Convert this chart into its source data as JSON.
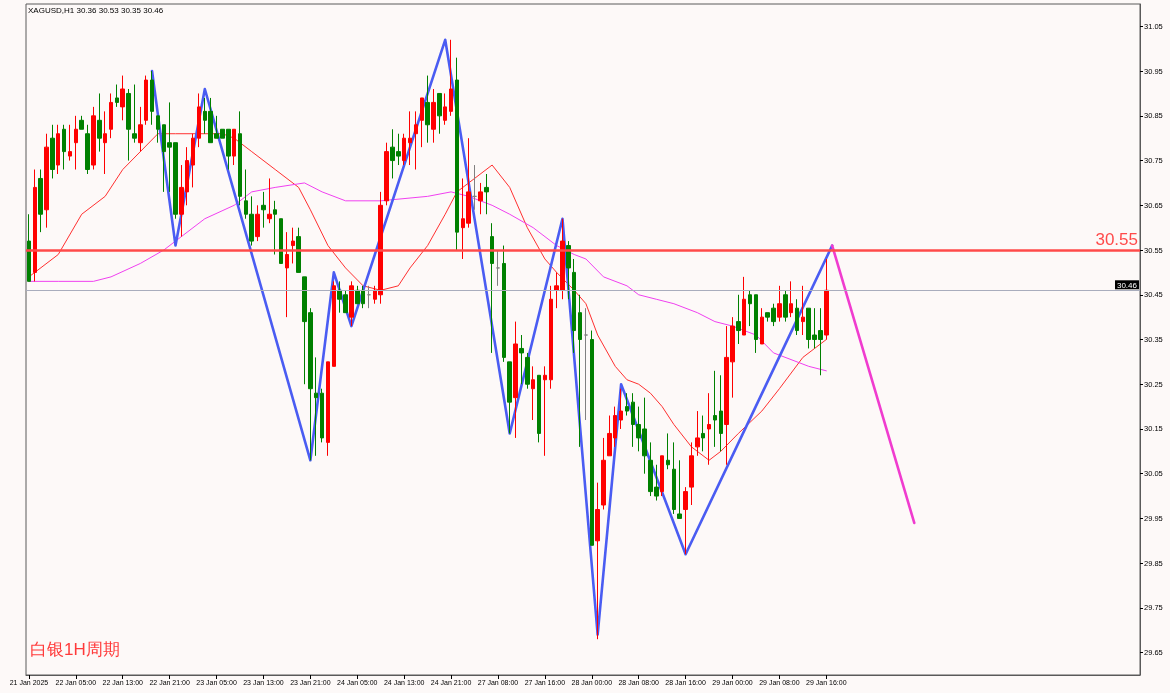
{
  "chart_data": {
    "type": "candlestick",
    "title": "XAGUSD,H1 30.36 30.53 30.35 30.46",
    "categories": [
      "21 Jan 2025",
      null,
      null,
      null,
      null,
      null,
      null,
      null,
      "22 Jan 05:00",
      null,
      null,
      null,
      null,
      null,
      null,
      null,
      "22 Jan 13:00",
      null,
      null,
      null,
      null,
      null,
      null,
      null,
      "22 Jan 21:00",
      null,
      null,
      null,
      null,
      null,
      null,
      null,
      "23 Jan 05:00",
      null,
      null,
      null,
      null,
      null,
      null,
      null,
      "23 Jan 13:00",
      null,
      null,
      null,
      null,
      null,
      null,
      null,
      "23 Jan 21:00",
      null,
      null,
      null,
      null,
      null,
      null,
      null,
      "24 Jan 05:00",
      null,
      null,
      null,
      null,
      null,
      null,
      null,
      "24 Jan 13:00",
      null,
      null,
      null,
      null,
      null,
      null,
      null,
      "24 Jan 21:00",
      null,
      null,
      null,
      null,
      null,
      null,
      null,
      "27 Jan 08:00",
      null,
      null,
      null,
      null,
      null,
      null,
      null,
      "27 Jan 16:00",
      null,
      null,
      null,
      null,
      null,
      null,
      null,
      "28 Jan 00:00",
      null,
      null,
      null,
      null,
      null,
      null,
      null,
      "28 Jan 08:00",
      null,
      null,
      null,
      null,
      null,
      null,
      null,
      "28 Jan 16:00",
      null,
      null,
      null,
      null,
      null,
      null,
      null,
      "29 Jan 00:00",
      null,
      null,
      null,
      null,
      null,
      null,
      null,
      "29 Jan 08:00",
      null,
      null,
      null,
      null,
      null,
      null,
      null,
      "29 Jan 16:00",
      null,
      null,
      null,
      null,
      null,
      null,
      null,
      null,
      null,
      null,
      null,
      null,
      null,
      null,
      null,
      null,
      null,
      null,
      null,
      null,
      null,
      null,
      null,
      null,
      null,
      null,
      null,
      null,
      null,
      null,
      null,
      null,
      null,
      null,
      null,
      null,
      null,
      null,
      null,
      null,
      null,
      null,
      null,
      null,
      null,
      null,
      null,
      null,
      null,
      null,
      null,
      null,
      null
    ],
    "ohlc": [
      [
        30.57,
        30.63,
        30.48,
        30.48
      ],
      [
        30.5,
        30.73,
        30.48,
        30.69
      ],
      [
        30.71,
        30.73,
        30.59,
        30.63
      ],
      [
        30.64,
        30.81,
        30.6,
        30.78
      ],
      [
        30.8,
        30.83,
        30.71,
        30.73
      ],
      [
        30.74,
        30.83,
        30.72,
        30.81
      ],
      [
        30.82,
        30.83,
        30.73,
        30.77
      ],
      [
        30.76,
        30.83,
        30.75,
        30.77
      ],
      [
        30.79,
        30.85,
        30.73,
        30.82
      ],
      [
        30.84,
        30.85,
        30.82,
        30.82
      ],
      [
        30.81,
        30.83,
        30.72,
        30.73
      ],
      [
        30.74,
        30.87,
        30.73,
        30.85
      ],
      [
        30.84,
        30.9,
        30.77,
        30.8
      ],
      [
        30.79,
        30.86,
        30.72,
        30.81
      ],
      [
        30.82,
        30.9,
        30.8,
        30.88
      ],
      [
        30.89,
        30.92,
        30.87,
        30.88
      ],
      [
        30.87,
        30.94,
        30.84,
        30.91
      ],
      [
        30.9,
        30.91,
        30.75,
        30.82
      ],
      [
        30.81,
        30.92,
        30.79,
        30.8
      ],
      [
        30.79,
        30.87,
        30.77,
        30.83
      ],
      [
        30.84,
        30.94,
        30.83,
        30.93
      ],
      [
        30.93,
        30.95,
        30.83,
        30.86
      ],
      [
        30.85,
        30.85,
        30.79,
        30.82
      ],
      [
        30.83,
        30.83,
        30.68,
        30.77
      ],
      [
        30.79,
        30.88,
        30.68,
        30.78
      ],
      [
        30.79,
        30.79,
        30.62,
        30.63
      ],
      [
        30.63,
        30.74,
        30.58,
        30.69
      ],
      [
        30.68,
        30.78,
        30.65,
        30.75
      ],
      [
        30.74,
        30.81,
        30.69,
        30.8
      ],
      [
        30.8,
        30.9,
        30.78,
        30.87
      ],
      [
        30.86,
        30.89,
        30.81,
        30.84
      ],
      [
        30.86,
        30.89,
        30.79,
        30.79
      ],
      [
        30.81,
        30.85,
        30.8,
        30.8
      ],
      [
        30.82,
        30.82,
        30.8,
        30.8
      ],
      [
        30.82,
        30.82,
        30.73,
        30.76
      ],
      [
        30.76,
        30.82,
        30.74,
        30.82
      ],
      [
        30.81,
        30.86,
        30.65,
        30.67
      ],
      [
        30.66,
        30.73,
        30.62,
        30.63
      ],
      [
        30.63,
        30.67,
        30.56,
        30.57
      ],
      [
        30.58,
        30.65,
        30.57,
        30.63
      ],
      [
        30.65,
        30.68,
        30.6,
        30.64
      ],
      [
        30.62,
        30.71,
        30.61,
        30.63
      ],
      [
        30.64,
        30.66,
        30.54,
        30.63
      ],
      [
        30.62,
        30.62,
        30.52,
        30.52
      ],
      [
        30.51,
        30.59,
        30.4,
        30.54
      ],
      [
        30.56,
        30.6,
        30.52,
        30.57
      ],
      [
        30.58,
        30.6,
        30.5,
        30.5
      ],
      [
        30.49,
        30.49,
        30.25,
        30.39
      ],
      [
        30.41,
        30.42,
        30.08,
        30.24
      ],
      [
        30.23,
        30.31,
        30.09,
        30.22
      ],
      [
        30.23,
        30.24,
        30.12,
        30.13
      ],
      [
        30.12,
        30.3,
        30.09,
        30.3
      ],
      [
        30.29,
        30.48,
        30.29,
        30.47
      ],
      [
        30.46,
        30.48,
        30.41,
        30.44
      ],
      [
        30.45,
        30.46,
        30.41,
        30.41
      ],
      [
        30.4,
        30.48,
        30.38,
        30.47
      ],
      [
        30.46,
        30.47,
        30.43,
        30.43
      ],
      [
        30.46,
        30.47,
        30.42,
        30.43
      ],
      [
        30.45,
        30.47,
        30.42,
        30.45
      ],
      [
        30.44,
        30.47,
        30.43,
        30.46
      ],
      [
        30.45,
        30.68,
        30.43,
        30.65
      ],
      [
        30.66,
        30.79,
        30.65,
        30.77
      ],
      [
        30.78,
        30.82,
        30.71,
        30.75
      ],
      [
        30.77,
        30.81,
        30.74,
        30.76
      ],
      [
        30.75,
        30.81,
        30.74,
        30.8
      ],
      [
        30.79,
        30.86,
        30.74,
        30.8
      ],
      [
        30.81,
        30.86,
        30.73,
        30.83
      ],
      [
        30.84,
        30.89,
        30.78,
        30.89
      ],
      [
        30.88,
        30.94,
        30.79,
        30.83
      ],
      [
        30.82,
        30.91,
        30.79,
        30.88
      ],
      [
        30.9,
        30.9,
        30.81,
        30.85
      ],
      [
        30.84,
        30.9,
        30.83,
        30.87
      ],
      [
        30.86,
        31.02,
        30.85,
        30.91
      ],
      [
        30.93,
        30.98,
        30.55,
        30.59
      ],
      [
        30.6,
        30.71,
        30.53,
        30.62
      ],
      [
        30.61,
        30.8,
        30.6,
        30.68
      ],
      [
        30.67,
        30.74,
        30.64,
        30.67
      ],
      [
        30.66,
        30.7,
        30.63,
        30.68
      ],
      [
        30.69,
        30.72,
        30.63,
        30.68
      ],
      [
        30.58,
        30.61,
        30.32,
        30.52
      ],
      [
        30.51,
        30.55,
        30.47,
        30.51
      ],
      [
        30.52,
        30.56,
        30.3,
        30.31
      ],
      [
        30.3,
        30.3,
        30.14,
        30.21
      ],
      [
        30.22,
        30.39,
        30.13,
        30.34
      ],
      [
        30.33,
        30.36,
        30.25,
        30.32
      ],
      [
        30.31,
        30.32,
        30.24,
        30.25
      ],
      [
        30.24,
        30.29,
        30.17,
        30.26
      ],
      [
        30.27,
        30.27,
        30.12,
        30.14
      ],
      [
        30.26,
        30.29,
        30.09,
        30.27
      ],
      [
        30.26,
        30.47,
        30.24,
        30.44
      ],
      [
        30.46,
        30.5,
        30.42,
        30.47
      ],
      [
        30.46,
        30.62,
        30.44,
        30.57
      ],
      [
        30.56,
        30.57,
        30.44,
        30.51
      ],
      [
        30.5,
        30.53,
        30.32,
        30.37
      ],
      [
        30.41,
        30.45,
        30.11,
        30.35
      ],
      [
        30.36,
        30.42,
        30.17,
        30.36
      ],
      [
        30.35,
        30.37,
        29.89,
        29.89
      ],
      [
        29.9,
        30.03,
        29.68,
        29.97
      ],
      [
        29.98,
        30.13,
        29.97,
        30.08
      ],
      [
        30.09,
        30.18,
        30.09,
        30.14
      ],
      [
        30.13,
        30.2,
        30.11,
        30.18
      ],
      [
        30.17,
        30.24,
        30.15,
        30.19
      ],
      [
        30.2,
        30.23,
        30.18,
        30.19
      ],
      [
        30.21,
        30.23,
        30.11,
        30.16
      ],
      [
        30.16,
        30.2,
        30.1,
        30.13
      ],
      [
        30.15,
        30.22,
        30.05,
        30.09
      ],
      [
        30.08,
        30.12,
        30.0,
        30.01
      ],
      [
        30.02,
        30.07,
        29.99,
        30.0
      ],
      [
        30.01,
        30.09,
        30.0,
        30.09
      ],
      [
        30.08,
        30.14,
        30.06,
        30.07
      ],
      [
        30.06,
        30.12,
        29.96,
        29.97
      ],
      [
        29.96,
        30.08,
        29.95,
        29.95
      ],
      [
        29.97,
        30.02,
        29.87,
        30.01
      ],
      [
        30.02,
        30.12,
        29.98,
        30.09
      ],
      [
        30.11,
        30.19,
        30.09,
        30.13
      ],
      [
        30.14,
        30.18,
        30.1,
        30.13
      ],
      [
        30.15,
        30.23,
        30.07,
        30.16
      ],
      [
        30.18,
        30.28,
        30.11,
        30.17
      ],
      [
        30.19,
        30.27,
        30.1,
        30.14
      ],
      [
        30.16,
        30.38,
        30.07,
        30.31
      ],
      [
        30.3,
        30.4,
        30.22,
        30.38
      ],
      [
        30.39,
        30.45,
        30.34,
        30.37
      ],
      [
        30.36,
        30.49,
        30.36,
        30.44
      ],
      [
        30.45,
        30.46,
        30.38,
        30.43
      ],
      [
        30.45,
        30.45,
        30.32,
        30.35
      ],
      [
        30.34,
        30.42,
        30.34,
        30.4
      ],
      [
        30.41,
        30.41,
        30.39,
        30.4
      ],
      [
        30.42,
        30.43,
        30.38,
        30.39
      ],
      [
        30.4,
        30.47,
        30.39,
        30.43
      ],
      [
        30.45,
        30.46,
        30.39,
        30.4
      ],
      [
        30.41,
        30.48,
        30.4,
        30.43
      ],
      [
        30.42,
        30.44,
        30.36,
        30.37
      ],
      [
        30.39,
        30.47,
        30.36,
        30.4
      ],
      [
        30.42,
        30.42,
        30.33,
        30.35
      ],
      [
        30.36,
        30.42,
        30.33,
        30.35
      ],
      [
        30.37,
        30.42,
        30.27,
        30.35
      ],
      [
        30.36,
        30.53,
        30.35,
        30.46
      ],
      null,
      null,
      null,
      null,
      null,
      null,
      null,
      null,
      null,
      null,
      null,
      null,
      null,
      null,
      null,
      null,
      null,
      null,
      null,
      null,
      null,
      null,
      null,
      null,
      null,
      null,
      null,
      null,
      null,
      null,
      null,
      null,
      null,
      null,
      null,
      null,
      null,
      null,
      null,
      null,
      null,
      null,
      null,
      null,
      null,
      null,
      null,
      null,
      null,
      null,
      null,
      null,
      null
    ],
    "colors": [
      "#008000",
      "#ff0000",
      "#008000",
      "#ff0000",
      "#008000",
      "#ff0000",
      "#008000",
      "#ff0000",
      "#ff0000",
      "#008000",
      "#008000",
      "#ff0000",
      "#008000",
      "#ff0000",
      "#ff0000",
      "#008000",
      "#ff0000",
      "#008000",
      "#008000",
      "#ff0000",
      "#ff0000",
      "#008000",
      "#008000",
      "#008000",
      "#008000",
      "#008000",
      "#ff0000",
      "#ff0000",
      "#ff0000",
      "#ff0000",
      "#008000",
      "#008000",
      "#008000",
      "#008000",
      "#008000",
      "#ff0000",
      "#008000",
      "#008000",
      "#008000",
      "#ff0000",
      "#008000",
      "#ff0000",
      "#008000",
      "#008000",
      "#ff0000",
      "#ff0000",
      "#008000",
      "#008000",
      "#008000",
      "#008000",
      "#008000",
      "#ff0000",
      "#ff0000",
      "#008000",
      "#008000",
      "#ff0000",
      "#008000",
      "#008000",
      "#808080",
      "#ff0000",
      "#ff0000",
      "#ff0000",
      "#008000",
      "#008000",
      "#ff0000",
      "#ff0000",
      "#ff0000",
      "#ff0000",
      "#008000",
      "#ff0000",
      "#008000",
      "#ff0000",
      "#ff0000",
      "#008000",
      "#ff0000",
      "#ff0000",
      "#808080",
      "#ff0000",
      "#008000",
      "#008000",
      "#808080",
      "#008000",
      "#008000",
      "#ff0000",
      "#008000",
      "#008000",
      "#ff0000",
      "#008000",
      "#ff0000",
      "#ff0000",
      "#ff0000",
      "#ff0000",
      "#008000",
      "#008000",
      "#008000",
      "#808080",
      "#008000",
      "#ff0000",
      "#ff0000",
      "#ff0000",
      "#ff0000",
      "#ff0000",
      "#008000",
      "#008000",
      "#008000",
      "#008000",
      "#008000",
      "#008000",
      "#ff0000",
      "#008000",
      "#008000",
      "#008000",
      "#ff0000",
      "#ff0000",
      "#ff0000",
      "#008000",
      "#ff0000",
      "#008000",
      "#008000",
      "#ff0000",
      "#ff0000",
      "#008000",
      "#ff0000",
      "#008000",
      "#008000",
      "#ff0000",
      "#008000",
      "#008000",
      "#ff0000",
      "#008000",
      "#ff0000",
      "#008000",
      "#ff0000",
      "#008000",
      "#008000",
      "#008000",
      "#ff0000",
      null,
      null,
      null,
      null,
      null,
      null,
      null,
      null,
      null,
      null,
      null,
      null,
      null,
      null,
      null,
      null,
      null,
      null,
      null,
      null,
      null,
      null,
      null,
      null,
      null,
      null,
      null,
      null,
      null,
      null,
      null,
      null,
      null,
      null,
      null,
      null,
      null,
      null,
      null,
      null,
      null,
      null,
      null,
      null,
      null,
      null,
      null,
      null,
      null,
      null,
      null,
      null,
      null
    ],
    "series": [
      {
        "type": "line",
        "color": "#ff3030",
        "values": [
          30.49,
          null,
          null,
          null,
          null,
          30.54,
          null,
          null,
          null,
          30.63,
          null,
          null,
          null,
          30.67,
          null,
          null,
          30.73,
          null,
          null,
          30.77,
          null,
          null,
          30.81,
          null,
          null,
          30.81,
          null,
          null,
          null,
          30.81,
          null,
          null,
          null,
          30.81,
          null,
          30.8,
          null,
          null,
          30.77,
          null,
          null,
          null,
          30.73,
          null,
          null,
          null,
          30.69,
          null,
          30.64,
          null,
          null,
          30.56,
          null,
          null,
          30.51,
          null,
          null,
          30.47,
          null,
          null,
          30.46,
          null,
          null,
          30.47,
          null,
          30.51,
          null,
          null,
          30.56,
          null,
          null,
          30.63,
          null,
          30.68,
          null,
          null,
          30.71,
          null,
          null,
          30.74,
          null,
          null,
          30.69,
          null,
          null,
          30.6,
          null,
          null,
          30.53,
          null,
          30.5,
          null,
          null,
          30.46,
          null,
          30.43,
          null,
          30.36,
          null,
          null,
          30.29,
          null,
          30.26,
          null,
          30.25,
          null,
          30.23,
          null,
          30.2,
          null,
          30.16,
          null,
          null,
          30.11,
          null,
          null,
          30.08,
          null,
          30.1,
          null,
          null,
          30.14,
          null,
          null,
          null,
          30.19,
          null,
          null,
          30.24,
          null,
          null,
          null,
          30.31,
          null,
          30.33,
          null,
          30.35,
          null,
          null,
          null,
          null,
          null,
          null,
          null,
          null,
          null,
          null,
          null,
          null,
          null,
          null,
          null,
          null,
          null,
          null,
          null,
          null,
          null,
          null,
          null,
          null,
          null,
          null,
          null,
          null,
          null,
          null,
          null,
          null,
          null,
          null,
          null,
          null,
          null,
          null,
          null,
          null,
          null,
          null,
          null,
          null,
          null,
          null,
          null,
          null,
          null,
          null,
          null,
          null,
          null
        ]
      },
      {
        "type": "line",
        "color": "#f040f0",
        "values": [
          30.48,
          null,
          null,
          null,
          null,
          30.48,
          null,
          null,
          null,
          null,
          null,
          30.48,
          null,
          null,
          30.49,
          null,
          null,
          null,
          null,
          30.52,
          null,
          null,
          null,
          30.55,
          null,
          null,
          30.58,
          null,
          null,
          null,
          30.62,
          null,
          null,
          null,
          null,
          30.65,
          null,
          null,
          30.68,
          null,
          null,
          null,
          30.69,
          null,
          null,
          null,
          null,
          30.7,
          null,
          null,
          30.68,
          null,
          null,
          null,
          30.66,
          null,
          null,
          null,
          null,
          null,
          30.66,
          null,
          null,
          null,
          null,
          null,
          null,
          null,
          30.67,
          null,
          null,
          null,
          30.68,
          null,
          null,
          30.67,
          null,
          null,
          null,
          30.65,
          null,
          null,
          30.63,
          null,
          null,
          null,
          30.6,
          null,
          null,
          null,
          30.56,
          null,
          null,
          30.54,
          null,
          30.53,
          null,
          null,
          30.49,
          null,
          null,
          null,
          30.47,
          null,
          30.45,
          null,
          null,
          30.44,
          null,
          null,
          30.43,
          null,
          null,
          null,
          30.41,
          null,
          null,
          30.39,
          null,
          null,
          30.38,
          null,
          null,
          null,
          30.36,
          null,
          null,
          30.32,
          null,
          null,
          null,
          30.3,
          null,
          30.29,
          null,
          null,
          30.28,
          null,
          null,
          null,
          null,
          null,
          null,
          null,
          null,
          null,
          null,
          null,
          null,
          null,
          null,
          null,
          null,
          null,
          null,
          null,
          null,
          null,
          null,
          null,
          null,
          null,
          null,
          null,
          null,
          null,
          null,
          null,
          null,
          null,
          null,
          null,
          null,
          null,
          null,
          null,
          null,
          null,
          null,
          null,
          null,
          null,
          null,
          null,
          null,
          null,
          null,
          null,
          null,
          null
        ]
      },
      {
        "type": "line",
        "color": "#4a5cf2",
        "values": [
          null,
          null,
          null,
          null,
          null,
          null,
          null,
          null,
          null,
          null,
          null,
          null,
          null,
          null,
          null,
          null,
          null,
          null,
          null,
          null,
          null,
          30.95,
          null,
          null,
          null,
          30.56,
          null,
          null,
          null,
          null,
          30.91,
          null,
          null,
          null,
          null,
          null,
          null,
          null,
          null,
          null,
          null,
          null,
          null,
          null,
          null,
          null,
          null,
          null,
          30.08,
          null,
          null,
          null,
          30.5,
          null,
          null,
          30.38,
          null,
          null,
          null,
          null,
          null,
          null,
          null,
          null,
          null,
          null,
          null,
          null,
          null,
          null,
          null,
          31.02,
          null,
          null,
          null,
          null,
          null,
          null,
          null,
          null,
          null,
          null,
          30.14,
          null,
          null,
          null,
          null,
          null,
          null,
          null,
          null,
          30.62,
          null,
          null,
          null,
          null,
          null,
          29.69,
          null,
          null,
          null,
          30.25,
          null,
          null,
          null,
          null,
          null,
          null,
          null,
          null,
          null,
          null,
          29.87,
          null,
          null,
          null,
          null,
          null,
          null,
          null,
          null,
          null,
          null,
          null,
          null,
          null,
          null,
          null,
          null,
          null,
          null,
          null,
          null,
          null,
          null,
          null,
          null,
          30.56,
          null,
          null,
          null,
          null,
          null,
          null,
          null,
          null,
          null,
          null,
          null,
          null,
          null,
          null,
          null,
          null,
          null,
          null,
          null,
          null,
          null,
          null,
          null,
          null,
          null,
          null,
          null,
          null,
          null,
          null,
          null,
          null,
          null,
          null,
          null,
          null,
          null,
          null,
          null,
          null,
          null,
          null,
          null,
          null,
          null,
          null,
          null,
          null,
          null,
          null,
          null,
          null
        ]
      },
      {
        "type": "line",
        "color": "#f03ccf",
        "values": [
          null,
          null,
          null,
          null,
          null,
          null,
          null,
          null,
          null,
          null,
          null,
          null,
          null,
          null,
          null,
          null,
          null,
          null,
          null,
          null,
          null,
          null,
          null,
          null,
          null,
          null,
          null,
          null,
          null,
          null,
          null,
          null,
          null,
          null,
          null,
          null,
          null,
          null,
          null,
          null,
          null,
          null,
          null,
          null,
          null,
          null,
          null,
          null,
          null,
          null,
          null,
          null,
          null,
          null,
          null,
          null,
          null,
          null,
          null,
          null,
          null,
          null,
          null,
          null,
          null,
          null,
          null,
          null,
          null,
          null,
          null,
          null,
          null,
          null,
          null,
          null,
          null,
          null,
          null,
          null,
          null,
          null,
          null,
          null,
          null,
          null,
          null,
          null,
          null,
          null,
          null,
          null,
          null,
          null,
          null,
          null,
          null,
          null,
          null,
          null,
          null,
          null,
          null,
          null,
          null,
          null,
          null,
          null,
          null,
          null,
          null,
          null,
          null,
          null,
          null,
          null,
          null,
          null,
          null,
          null,
          null,
          null,
          null,
          null,
          null,
          null,
          null,
          null,
          null,
          null,
          null,
          null,
          null,
          null,
          null,
          null,
          null,
          30.56,
          null,
          null,
          null,
          null,
          null,
          null,
          null,
          null,
          null,
          null,
          null,
          null,
          null,
          29.94,
          null,
          null,
          null,
          null,
          null,
          null,
          null,
          null,
          null,
          null,
          null,
          null,
          null,
          null,
          null,
          null,
          null,
          null,
          null,
          null,
          null,
          null,
          null,
          null,
          null,
          null,
          null,
          null,
          null,
          null,
          null,
          null,
          null,
          null,
          null,
          null,
          null,
          null
        ]
      }
    ],
    "ylim": [
      29.6,
      31.1
    ],
    "yticks": [
      29.65,
      29.75,
      29.85,
      29.95,
      30.05,
      30.15,
      30.25,
      30.35,
      30.45,
      30.55,
      30.65,
      30.75,
      30.85,
      30.95,
      31.05
    ],
    "ref_lines": [
      {
        "axis": "y",
        "value": 30.55,
        "label": "30.55",
        "color": "#ff4a4a"
      },
      {
        "axis": "y",
        "value": 30.46,
        "label": "30.46",
        "color": "#a9adbd"
      }
    ],
    "annotations": [
      "白银1H周期"
    ],
    "grid": false,
    "marker": "none"
  }
}
